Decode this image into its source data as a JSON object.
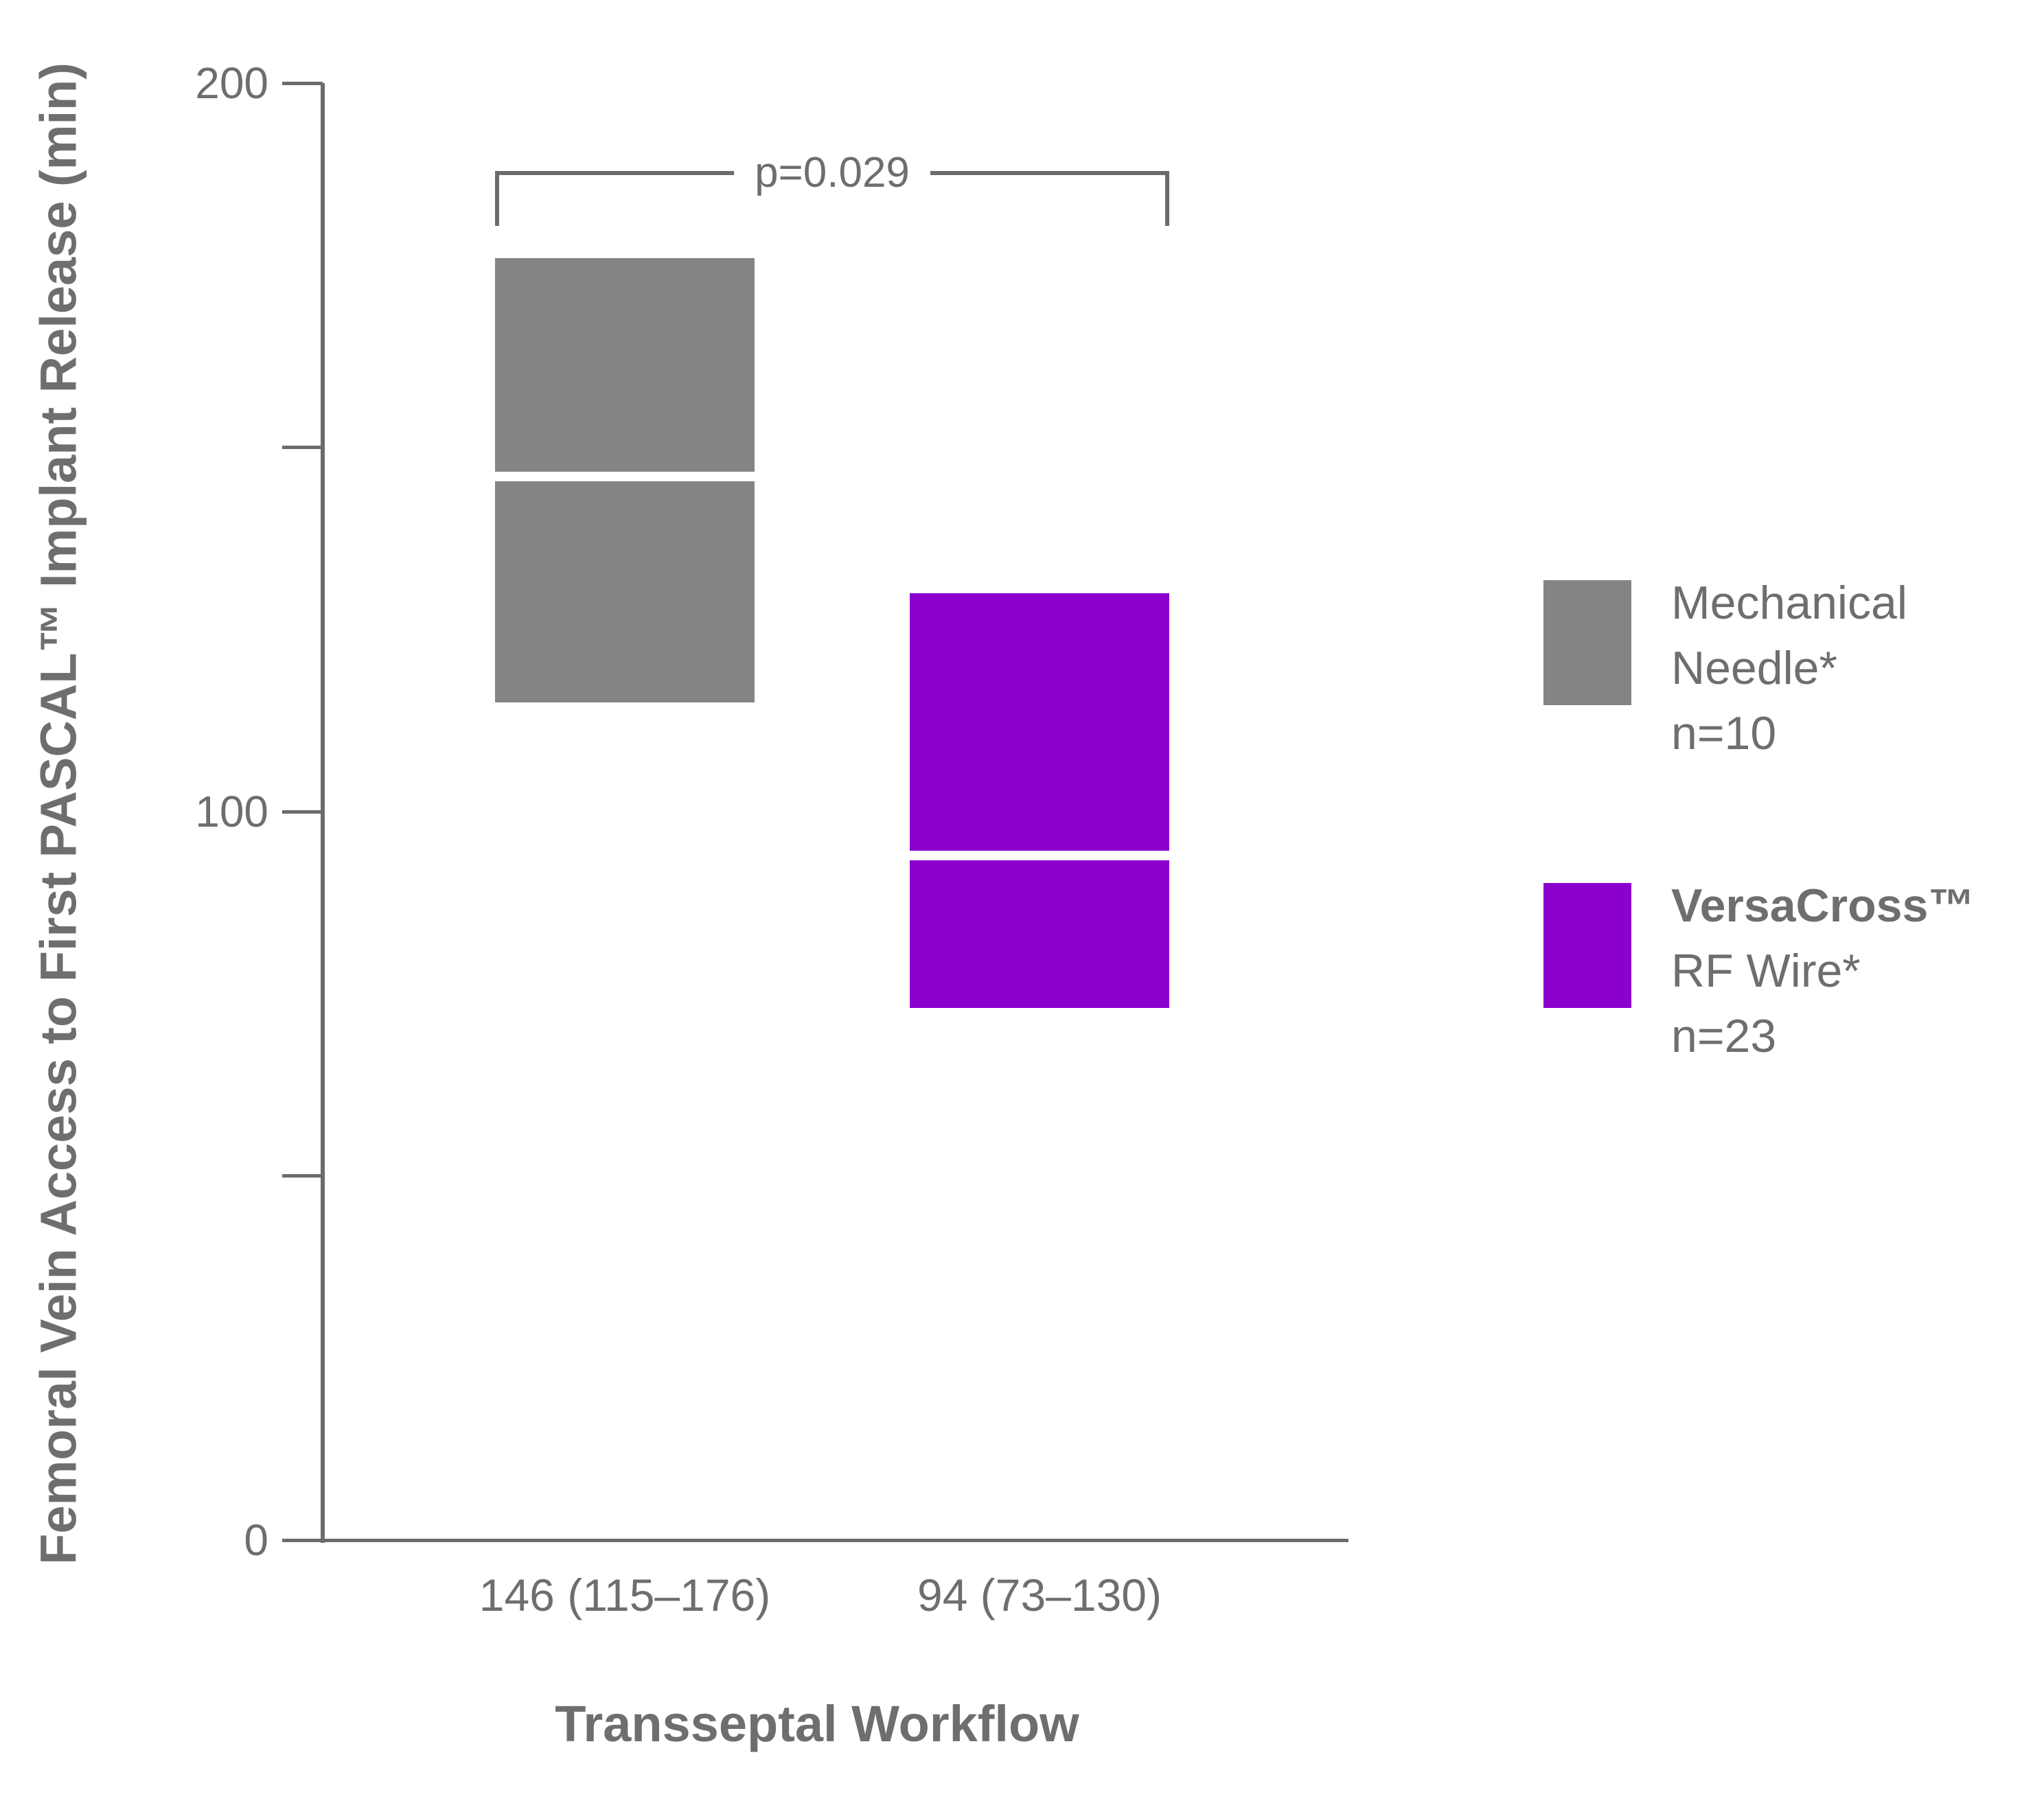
{
  "chart_data": {
    "type": "box",
    "title": "",
    "y_axis": {
      "label": "Femoral Vein Access to First PASCAL™ Implant Release (min)",
      "min": 0,
      "max": 200,
      "ticks": [
        0,
        50,
        100,
        150,
        200
      ],
      "labeled_ticks": [
        0,
        100,
        200
      ],
      "grid": false
    },
    "x_axis": {
      "label": "Transseptal Workflow"
    },
    "series": [
      {
        "name": "Mechanical Needle*",
        "n": 10,
        "median": 146,
        "q1": 115,
        "q3": 176,
        "color": "#848484",
        "tick_label": "146 (115–176)"
      },
      {
        "name": "VersaCross™ RF Wire*",
        "n": 23,
        "median": 94,
        "q1": 73,
        "q3": 130,
        "color": "#8C00CE",
        "tick_label": "94 (73–130)"
      }
    ],
    "annotation": {
      "p_value_label": "p=0.029"
    },
    "legend_position": "right"
  },
  "legend": {
    "items": [
      {
        "label_lines": [
          "Mechanical",
          "Needle*",
          "n=10"
        ],
        "color": "#848484"
      },
      {
        "label_lines": [
          "VersaCross™",
          "RF Wire*",
          "n=23"
        ],
        "color": "#8C00CE"
      }
    ]
  },
  "colors": {
    "text": "#6e6e6e",
    "axis": "#6b6b6b",
    "background": "#ffffff",
    "median_line": "#ffffff"
  }
}
